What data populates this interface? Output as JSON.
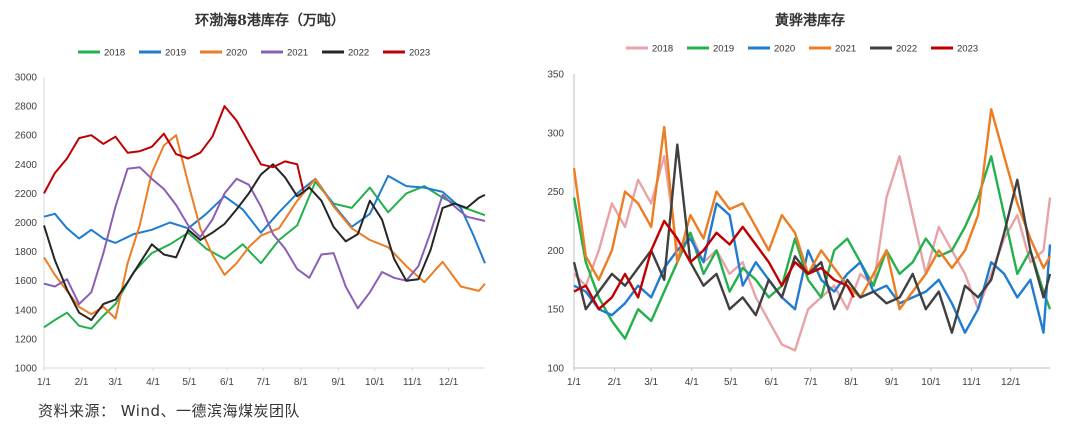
{
  "source": "资料来源：  Wind、一德滨海煤炭团队",
  "chart_data": [
    {
      "type": "line",
      "title": "环渤海8港库存（万吨）",
      "x_tick_labels": [
        "1/1",
        "2/1",
        "3/1",
        "4/1",
        "5/1",
        "6/1",
        "7/1",
        "8/1",
        "9/1",
        "10/1",
        "11/1",
        "12/1"
      ],
      "ylim": [
        1000,
        3000
      ],
      "y_ticks": [
        1000,
        1200,
        1400,
        1600,
        1800,
        2000,
        2200,
        2400,
        2600,
        2800,
        3000
      ],
      "grid": "none",
      "legend_position": "top",
      "x_unit": "day of year",
      "series": [
        {
          "name": "2018",
          "color": "#22b14c",
          "x": [
            1,
            10,
            20,
            30,
            40,
            50,
            60,
            75,
            90,
            105,
            120,
            135,
            150,
            165,
            180,
            195,
            210,
            225,
            240,
            255,
            270,
            285,
            300,
            315,
            330,
            345,
            365
          ],
          "values": [
            1280,
            1330,
            1380,
            1290,
            1270,
            1360,
            1440,
            1660,
            1790,
            1850,
            1930,
            1820,
            1750,
            1850,
            1720,
            1880,
            1980,
            2280,
            2130,
            2100,
            2240,
            2070,
            2200,
            2250,
            2170,
            2110,
            2050
          ]
        },
        {
          "name": "2019",
          "color": "#1f7cd0",
          "x": [
            1,
            10,
            20,
            30,
            40,
            50,
            60,
            75,
            90,
            105,
            120,
            135,
            150,
            165,
            180,
            195,
            210,
            225,
            240,
            255,
            270,
            285,
            300,
            315,
            330,
            345,
            355,
            365
          ],
          "values": [
            2040,
            2060,
            1960,
            1890,
            1950,
            1890,
            1860,
            1920,
            1950,
            2000,
            1960,
            2060,
            2180,
            2090,
            1930,
            2070,
            2200,
            2300,
            2120,
            1970,
            2060,
            2320,
            2250,
            2240,
            2210,
            2100,
            1920,
            1720
          ]
        },
        {
          "name": "2020",
          "color": "#ed7d22",
          "x": [
            1,
            10,
            20,
            30,
            40,
            50,
            60,
            70,
            80,
            90,
            100,
            110,
            120,
            130,
            140,
            150,
            160,
            170,
            180,
            195,
            210,
            225,
            240,
            255,
            270,
            285,
            300,
            315,
            330,
            345,
            360,
            365
          ],
          "values": [
            1760,
            1640,
            1530,
            1420,
            1370,
            1420,
            1340,
            1720,
            1980,
            2340,
            2530,
            2600,
            2270,
            1960,
            1780,
            1640,
            1720,
            1830,
            1910,
            1960,
            2150,
            2300,
            2110,
            1960,
            1880,
            1830,
            1700,
            1590,
            1730,
            1560,
            1530,
            1580
          ]
        },
        {
          "name": "2021",
          "color": "#8c5fb6",
          "x": [
            1,
            10,
            20,
            30,
            40,
            50,
            60,
            70,
            80,
            90,
            100,
            110,
            120,
            130,
            140,
            150,
            160,
            170,
            180,
            190,
            200,
            210,
            220,
            230,
            240,
            250,
            260,
            270,
            280,
            290,
            300,
            310,
            320,
            330,
            340,
            350,
            365
          ],
          "values": [
            1580,
            1560,
            1610,
            1440,
            1520,
            1790,
            2110,
            2370,
            2380,
            2300,
            2230,
            2120,
            1980,
            1900,
            2020,
            2200,
            2300,
            2260,
            2110,
            1920,
            1820,
            1680,
            1620,
            1780,
            1790,
            1560,
            1410,
            1520,
            1660,
            1620,
            1600,
            1700,
            1930,
            2190,
            2110,
            2040,
            2010
          ]
        },
        {
          "name": "2022",
          "color": "#262626",
          "x": [
            1,
            10,
            20,
            30,
            40,
            50,
            60,
            70,
            80,
            90,
            100,
            110,
            120,
            130,
            140,
            150,
            160,
            170,
            180,
            190,
            200,
            210,
            220,
            230,
            240,
            250,
            260,
            270,
            280,
            290,
            300,
            310,
            320,
            330,
            340,
            350,
            360,
            365
          ],
          "values": [
            1980,
            1740,
            1540,
            1380,
            1330,
            1440,
            1470,
            1590,
            1720,
            1850,
            1780,
            1760,
            1950,
            1880,
            1930,
            1990,
            2090,
            2200,
            2330,
            2400,
            2310,
            2180,
            2240,
            2150,
            1970,
            1870,
            1920,
            2150,
            2020,
            1750,
            1600,
            1610,
            1810,
            2100,
            2130,
            2100,
            2170,
            2190
          ]
        },
        {
          "name": "2023",
          "color": "#c00000",
          "x": [
            1,
            10,
            20,
            30,
            40,
            50,
            60,
            70,
            80,
            90,
            100,
            110,
            120,
            130,
            140,
            150,
            160,
            170,
            180,
            190,
            200,
            210,
            215
          ],
          "values": [
            2200,
            2340,
            2440,
            2580,
            2600,
            2540,
            2590,
            2480,
            2490,
            2520,
            2610,
            2470,
            2440,
            2480,
            2590,
            2800,
            2700,
            2550,
            2400,
            2380,
            2420,
            2400,
            2220
          ]
        }
      ]
    },
    {
      "type": "line",
      "title": "黄骅港库存",
      "x_tick_labels": [
        "1/1",
        "2/1",
        "3/1",
        "4/1",
        "5/1",
        "6/1",
        "7/1",
        "8/1",
        "9/1",
        "10/1",
        "11/1",
        "12/1"
      ],
      "ylim": [
        100,
        350
      ],
      "y_ticks": [
        100,
        150,
        200,
        250,
        300,
        350
      ],
      "grid": "none",
      "legend_position": "top",
      "x_unit": "day of year",
      "series": [
        {
          "name": "2018",
          "color": "#e8a3a8",
          "x": [
            1,
            10,
            20,
            30,
            40,
            50,
            60,
            70,
            80,
            90,
            100,
            110,
            120,
            130,
            140,
            150,
            160,
            170,
            180,
            190,
            200,
            210,
            220,
            230,
            240,
            250,
            260,
            270,
            280,
            290,
            300,
            310,
            320,
            330,
            340,
            350,
            360,
            365
          ],
          "values": [
            180,
            170,
            200,
            240,
            220,
            260,
            240,
            280,
            200,
            215,
            190,
            200,
            180,
            190,
            160,
            140,
            120,
            115,
            150,
            160,
            170,
            150,
            180,
            170,
            245,
            280,
            230,
            180,
            220,
            200,
            180,
            150,
            180,
            210,
            230,
            190,
            200,
            245
          ]
        },
        {
          "name": "2019",
          "color": "#22b14c",
          "x": [
            1,
            10,
            20,
            30,
            40,
            50,
            60,
            70,
            80,
            90,
            100,
            110,
            120,
            130,
            140,
            150,
            160,
            170,
            180,
            190,
            200,
            210,
            220,
            230,
            240,
            250,
            260,
            270,
            280,
            290,
            300,
            310,
            320,
            330,
            340,
            350,
            360,
            365
          ],
          "values": [
            245,
            190,
            160,
            140,
            125,
            150,
            140,
            165,
            190,
            215,
            180,
            200,
            165,
            185,
            175,
            160,
            170,
            210,
            175,
            160,
            200,
            210,
            190,
            170,
            200,
            180,
            190,
            210,
            195,
            200,
            220,
            245,
            280,
            230,
            180,
            200,
            165,
            150
          ]
        },
        {
          "name": "2020",
          "color": "#1f7cd0",
          "x": [
            1,
            10,
            20,
            30,
            40,
            50,
            60,
            70,
            80,
            90,
            100,
            110,
            120,
            130,
            140,
            150,
            160,
            170,
            180,
            190,
            200,
            210,
            220,
            230,
            240,
            250,
            260,
            270,
            280,
            290,
            300,
            310,
            320,
            330,
            340,
            350,
            360,
            365
          ],
          "values": [
            170,
            165,
            150,
            145,
            155,
            170,
            160,
            185,
            200,
            210,
            190,
            240,
            230,
            170,
            190,
            175,
            160,
            150,
            200,
            175,
            165,
            180,
            190,
            165,
            170,
            155,
            160,
            165,
            175,
            155,
            130,
            150,
            190,
            180,
            160,
            175,
            130,
            205
          ]
        },
        {
          "name": "2021",
          "color": "#ed7d22",
          "x": [
            1,
            10,
            20,
            30,
            40,
            50,
            60,
            70,
            80,
            90,
            100,
            110,
            120,
            130,
            140,
            150,
            160,
            170,
            180,
            190,
            200,
            210,
            220,
            230,
            240,
            250,
            260,
            270,
            280,
            290,
            300,
            310,
            320,
            330,
            340,
            350,
            360,
            365
          ],
          "values": [
            270,
            195,
            175,
            200,
            250,
            240,
            220,
            305,
            190,
            230,
            210,
            250,
            235,
            240,
            220,
            200,
            230,
            215,
            180,
            200,
            185,
            170,
            160,
            180,
            200,
            150,
            165,
            180,
            200,
            185,
            200,
            230,
            320,
            280,
            240,
            210,
            185,
            195
          ]
        },
        {
          "name": "2022",
          "color": "#404040",
          "x": [
            1,
            10,
            20,
            30,
            40,
            50,
            60,
            70,
            80,
            90,
            100,
            110,
            120,
            130,
            140,
            150,
            160,
            170,
            180,
            190,
            200,
            210,
            220,
            230,
            240,
            250,
            260,
            270,
            280,
            290,
            300,
            310,
            320,
            330,
            340,
            350,
            360,
            365
          ],
          "values": [
            190,
            150,
            165,
            180,
            170,
            185,
            200,
            175,
            290,
            190,
            170,
            180,
            150,
            160,
            145,
            175,
            160,
            195,
            180,
            190,
            150,
            175,
            160,
            165,
            155,
            160,
            180,
            150,
            165,
            130,
            170,
            160,
            175,
            215,
            260,
            200,
            160,
            180
          ]
        },
        {
          "name": "2023",
          "color": "#c00000",
          "x": [
            1,
            10,
            20,
            30,
            40,
            50,
            60,
            70,
            80,
            90,
            100,
            110,
            120,
            130,
            140,
            150,
            160,
            170,
            180,
            190,
            200,
            210,
            215
          ],
          "values": [
            165,
            170,
            150,
            160,
            180,
            160,
            200,
            225,
            210,
            190,
            200,
            215,
            205,
            220,
            205,
            190,
            170,
            190,
            180,
            185,
            175,
            170,
            160
          ]
        }
      ]
    }
  ]
}
